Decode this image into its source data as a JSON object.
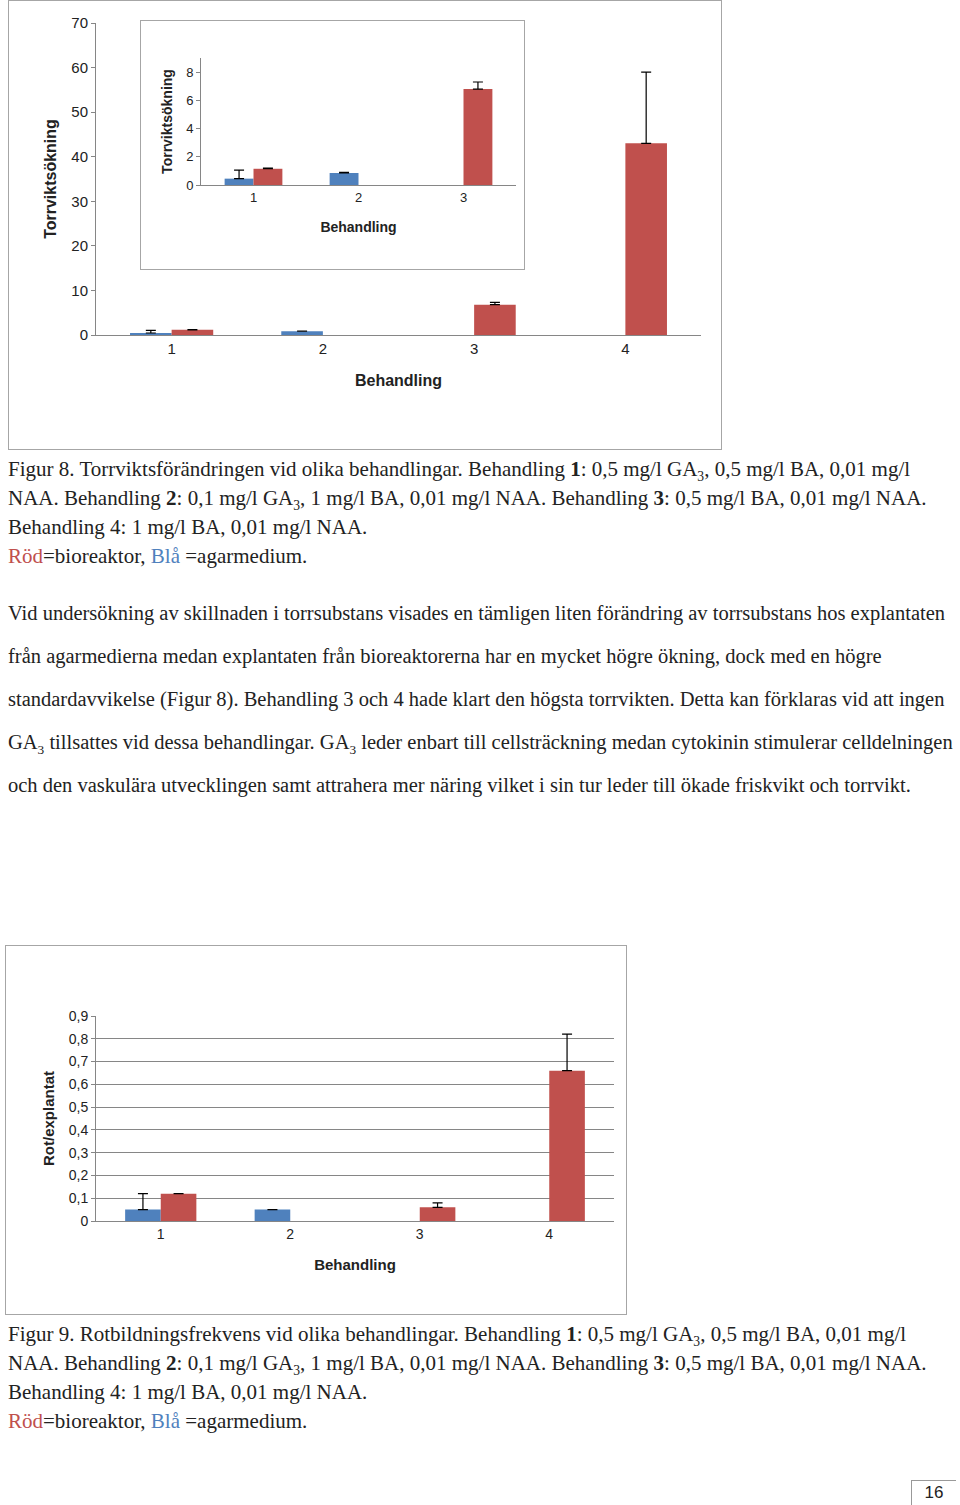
{
  "chart_data": [
    {
      "type": "bar",
      "x_label": "Behandling",
      "y_label": "Torrviktsökning",
      "categories": [
        "1",
        "2",
        "3",
        "4"
      ],
      "series": [
        {
          "color": "#4f81bd",
          "values": [
            0.45,
            0.85,
            null,
            null
          ],
          "errors": [
            0.6,
            0.05,
            null,
            null
          ]
        },
        {
          "color": "#c0504d",
          "values": [
            1.15,
            null,
            6.8,
            43
          ],
          "errors": [
            0.05,
            null,
            0.5,
            16
          ]
        }
      ],
      "ylim": [
        0,
        70
      ],
      "yticks": [
        0,
        10,
        20,
        30,
        40,
        50,
        60,
        70
      ],
      "grid": false
    },
    {
      "type": "bar",
      "x_label": "Behandling",
      "y_label": "Torrviktsökning",
      "categories": [
        "1",
        "2",
        "3"
      ],
      "series": [
        {
          "color": "#4f81bd",
          "values": [
            0.45,
            0.85,
            null
          ],
          "errors": [
            0.6,
            0.05,
            null
          ]
        },
        {
          "color": "#c0504d",
          "values": [
            1.15,
            null,
            6.8
          ],
          "errors": [
            0.05,
            null,
            0.5
          ]
        }
      ],
      "ylim": [
        0,
        9
      ],
      "yticks": [
        0,
        2,
        4,
        6,
        8
      ],
      "grid": false
    },
    {
      "type": "bar",
      "x_label": "Behandling",
      "y_label": "Rot/explantat",
      "categories": [
        "1",
        "2",
        "3",
        "4"
      ],
      "series": [
        {
          "color": "#4f81bd",
          "values": [
            0.05,
            0.05,
            null,
            null
          ],
          "errors": [
            0.07,
            null,
            null,
            null
          ]
        },
        {
          "color": "#c0504d",
          "values": [
            0.12,
            null,
            0.06,
            0.66
          ],
          "errors": [
            null,
            null,
            0.02,
            0.16
          ]
        }
      ],
      "ylim": [
        0,
        0.9
      ],
      "yticks": [
        0,
        {
          "value": 0.1,
          "label": "0,1"
        },
        {
          "value": 0.2,
          "label": "0,2"
        },
        {
          "value": 0.3,
          "label": "0,3"
        },
        {
          "value": 0.4,
          "label": "0,4"
        },
        {
          "value": 0.5,
          "label": "0,5"
        },
        {
          "value": 0.6,
          "label": "0,6"
        },
        {
          "value": 0.7,
          "label": "0,7"
        },
        {
          "value": 0.8,
          "label": "0,8"
        },
        {
          "value": 0.9,
          "label": "0,9"
        }
      ],
      "grid": true
    }
  ],
  "captions": [
    [
      [
        {
          "text": "Figur 8. Torrviktsförändringen vid olika behandlingar. Behandling "
        },
        {
          "text": "1",
          "bold": true
        },
        {
          "text": ": 0,5 mg/l GA"
        },
        {
          "text": "3",
          "sub": true
        },
        {
          "text": ", 0,5 mg/l BA, 0,01 mg/l NAA. Behandling "
        },
        {
          "text": "2",
          "bold": true
        },
        {
          "text": ": 0,1 mg/l GA"
        },
        {
          "text": "3",
          "sub": true
        },
        {
          "text": ", 1 mg/l BA, 0,01 mg/l NAA. Behandling "
        },
        {
          "text": "3",
          "bold": true
        },
        {
          "text": ": 0,5 mg/l BA, 0,01 mg/l NAA. Behandling 4: 1 mg/l BA, 0,01 mg/l NAA."
        }
      ],
      [
        {
          "text": "Röd",
          "color": "#c0504d"
        },
        {
          "text": "=bioreaktor, "
        },
        {
          "text": "Blå",
          "color": "#4f81bd"
        },
        {
          "text": " =agarmedium."
        }
      ]
    ],
    [
      [
        {
          "text": "Figur 9. Rotbildningsfrekvens vid olika behandlingar. Behandling "
        },
        {
          "text": "1",
          "bold": true
        },
        {
          "text": ": 0,5 mg/l GA"
        },
        {
          "text": "3",
          "sub": true
        },
        {
          "text": ", 0,5 mg/l BA, 0,01 mg/l NAA. Behandling "
        },
        {
          "text": "2",
          "bold": true
        },
        {
          "text": ": 0,1 mg/l GA"
        },
        {
          "text": "3",
          "sub": true
        },
        {
          "text": ", 1 mg/l BA, 0,01 mg/l NAA. Behandling "
        },
        {
          "text": "3",
          "bold": true
        },
        {
          "text": ": 0,5 mg/l BA, 0,01 mg/l NAA. Behandling 4: 1 mg/l BA, 0,01 mg/l NAA."
        }
      ],
      [
        {
          "text": "Röd",
          "color": "#c0504d"
        },
        {
          "text": "=bioreaktor, "
        },
        {
          "text": "Blå",
          "color": "#4f81bd"
        },
        {
          "text": " =agarmedium."
        }
      ]
    ]
  ],
  "paragraph": [
    {
      "text": "Vid undersökning av skillnaden i torrsubstans visades en tämligen liten förändring av torrsubstans hos explantaten från agarmedierna medan explantaten från bioreaktorerna har en mycket högre ökning, dock med en högre standardavvikelse (Figur 8). Behandling 3 och 4 hade klart den högsta torrvikten. Detta kan förklaras vid att ingen GA"
    },
    {
      "text": "3",
      "sub": true
    },
    {
      "text": " tillsattes vid dessa behandlingar. GA"
    },
    {
      "text": "3",
      "sub": true
    },
    {
      "text": " leder enbart till cellsträckning medan cytokinin stimulerar celldelningen och den vaskulära utvecklingen samt attrahera mer näring vilket i sin tur leder till ökade friskvikt och torrvikt."
    }
  ],
  "page_number": "16"
}
